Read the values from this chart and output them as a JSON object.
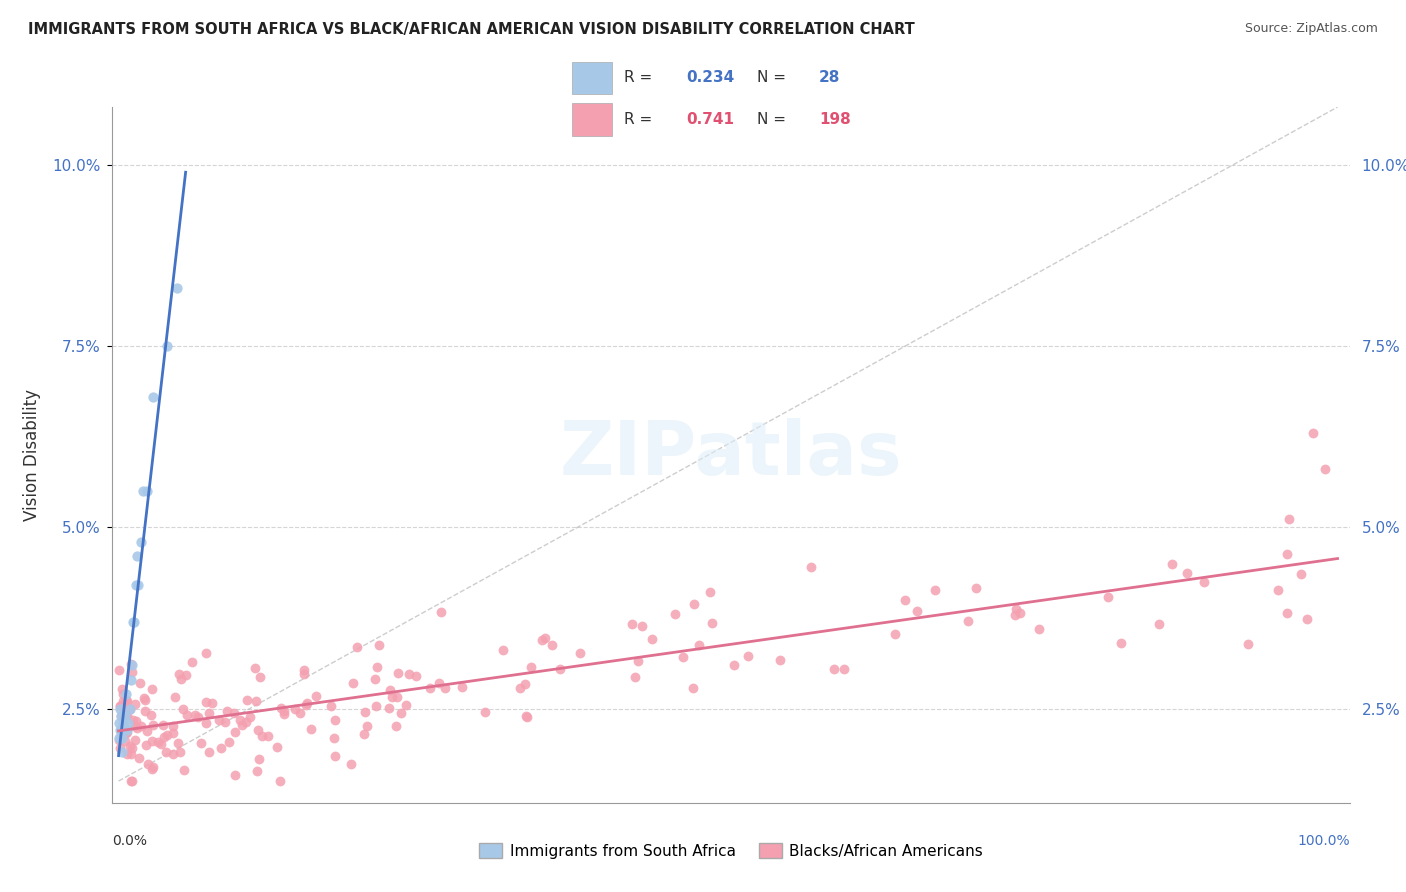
{
  "title": "IMMIGRANTS FROM SOUTH AFRICA VS BLACK/AFRICAN AMERICAN VISION DISABILITY CORRELATION CHART",
  "source": "Source: ZipAtlas.com",
  "ylabel": "Vision Disability",
  "xlim": [
    0.0,
    1.0
  ],
  "ylim": [
    0.012,
    0.108
  ],
  "ytick_positions": [
    0.025,
    0.05,
    0.075,
    0.1
  ],
  "ytick_labels": [
    "2.5%",
    "5.0%",
    "7.5%",
    "10.0%"
  ],
  "R1": "0.234",
  "N1": "28",
  "R2": "0.741",
  "N2": "198",
  "color_blue_fill": "#a8c8e8",
  "color_pink_fill": "#f4a0b0",
  "color_blue_text": "#4472c4",
  "color_pink_text": "#e05070",
  "color_line_blue": "#4472c4",
  "color_line_pink": "#e07090",
  "color_diag": "#b8b8b8",
  "legend_label1": "Immigrants from South Africa",
  "legend_label2": "Blacks/African Americans",
  "watermark": "ZIPatlas",
  "background_color": "#ffffff"
}
